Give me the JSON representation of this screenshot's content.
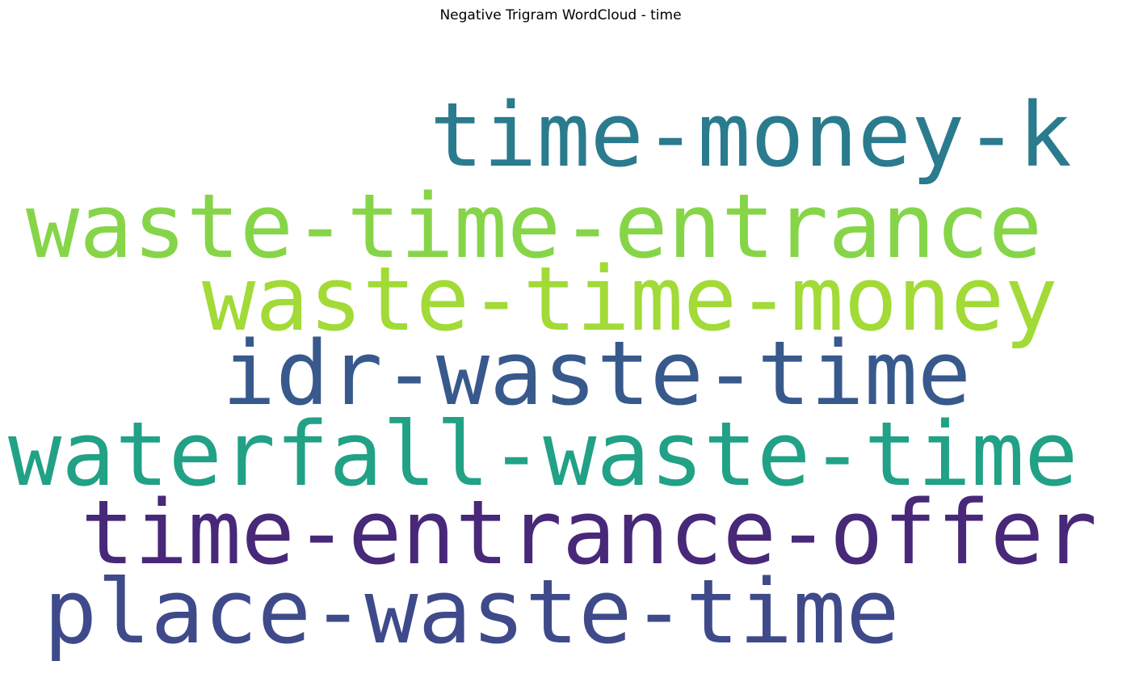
{
  "chart_data": {
    "type": "wordcloud",
    "title": "Negative Trigram WordCloud - time",
    "words": [
      {
        "text": "time-money-k",
        "color": "#2a7b8e"
      },
      {
        "text": "waste-time-entrance",
        "color": "#86d549"
      },
      {
        "text": "waste-time-money",
        "color": "#a2da37"
      },
      {
        "text": "idr-waste-time",
        "color": "#38598c"
      },
      {
        "text": "waterfall-waste-time",
        "color": "#21a186"
      },
      {
        "text": "time-entrance-offer",
        "color": "#482878"
      },
      {
        "text": "place-waste-time",
        "color": "#3e4a89"
      }
    ]
  }
}
